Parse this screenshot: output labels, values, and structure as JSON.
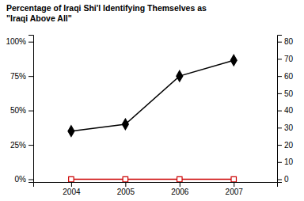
{
  "chart_data": {
    "type": "line",
    "title": "Percentage of Iraqi Shi'l Identifying Themselves as\n\"Iraqi Above All\"",
    "x": [
      2004,
      2005,
      2006,
      2007
    ],
    "xlim": [
      2003.3,
      2007.8
    ],
    "xticks": [
      2004,
      2005,
      2006,
      2007
    ],
    "ylim": [
      -0.02,
      1.05
    ],
    "yticks": [
      {
        "value": 0.0,
        "label": "0%"
      },
      {
        "value": 0.25,
        "label": "25%"
      },
      {
        "value": 0.5,
        "label": "50%"
      },
      {
        "value": 0.75,
        "label": "75%"
      },
      {
        "value": 1.0,
        "label": "100%"
      }
    ],
    "y2lim": [
      -1.6,
      84
    ],
    "y2ticks": [
      0,
      10,
      20,
      30,
      40,
      50,
      60,
      70,
      80
    ],
    "grid": false,
    "series": [
      {
        "color": "#000000",
        "marker": "diamond",
        "line_style": "solid",
        "values": [
          0.35,
          0.4,
          0.75,
          0.865
        ]
      },
      {
        "color": "#cc0000",
        "marker": "square-open",
        "line_style": "solid",
        "values": [
          0.0,
          0.0,
          0.0,
          0.0
        ]
      }
    ]
  }
}
